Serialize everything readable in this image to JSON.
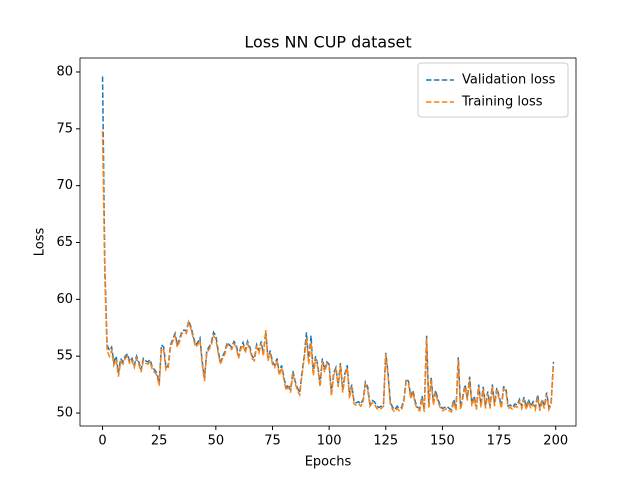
{
  "chart_data": {
    "type": "line",
    "title": "Loss NN CUP dataset",
    "xlabel": "Epochs",
    "ylabel": "Loss",
    "x": [
      0,
      1,
      2,
      3,
      4,
      5,
      6,
      7,
      8,
      9,
      10,
      11,
      12,
      13,
      14,
      15,
      16,
      17,
      18,
      19,
      20,
      21,
      22,
      23,
      24,
      25,
      26,
      27,
      28,
      29,
      30,
      31,
      32,
      33,
      34,
      35,
      36,
      37,
      38,
      39,
      40,
      41,
      42,
      43,
      44,
      45,
      46,
      47,
      48,
      49,
      50,
      51,
      52,
      53,
      54,
      55,
      56,
      57,
      58,
      59,
      60,
      61,
      62,
      63,
      64,
      65,
      66,
      67,
      68,
      69,
      70,
      71,
      72,
      73,
      74,
      75,
      76,
      77,
      78,
      79,
      80,
      81,
      82,
      83,
      84,
      85,
      86,
      87,
      88,
      89,
      90,
      91,
      92,
      93,
      94,
      95,
      96,
      97,
      98,
      99,
      100,
      101,
      102,
      103,
      104,
      105,
      106,
      107,
      108,
      109,
      110,
      111,
      112,
      113,
      114,
      115,
      116,
      117,
      118,
      119,
      120,
      121,
      122,
      123,
      124,
      125,
      126,
      127,
      128,
      129,
      130,
      131,
      132,
      133,
      134,
      135,
      136,
      137,
      138,
      139,
      140,
      141,
      142,
      143,
      144,
      145,
      146,
      147,
      148,
      149,
      150,
      151,
      152,
      153,
      154,
      155,
      156,
      157,
      158,
      159,
      160,
      161,
      162,
      163,
      164,
      165,
      166,
      167,
      168,
      169,
      170,
      171,
      172,
      173,
      174,
      175,
      176,
      177,
      178,
      179,
      180,
      181,
      182,
      183,
      184,
      185,
      186,
      187,
      188,
      189,
      190,
      191,
      192,
      193,
      194,
      195,
      196,
      197,
      198,
      199
    ],
    "series": [
      {
        "name": "Validation loss",
        "color": "#1f77b4",
        "values": [
          79.6,
          63,
          56,
          55.5,
          55.8,
          54.5,
          55,
          53.5,
          54.8,
          54.5,
          55,
          55.2,
          54.5,
          54.8,
          54.2,
          55,
          54.5,
          53.8,
          54.8,
          54.6,
          54.5,
          54.7,
          54,
          53.8,
          53.5,
          52.6,
          56,
          55.8,
          54,
          54.2,
          56,
          56.5,
          57,
          56,
          56.5,
          57.2,
          57.3,
          57.2,
          58.1,
          57.6,
          56.8,
          56,
          56.2,
          56.6,
          54.5,
          53,
          55.5,
          55.8,
          56.2,
          57.1,
          56.8,
          55.5,
          54.5,
          55,
          55.4,
          56.2,
          56,
          55.8,
          56.3,
          56,
          55,
          55.8,
          56.2,
          55.5,
          56.3,
          55.8,
          55,
          54.8,
          56,
          55.5,
          56.3,
          55.2,
          57.2,
          54.8,
          55.5,
          54.5,
          54.2,
          54.8,
          53.5,
          54.2,
          53.2,
          52.2,
          52.5,
          52,
          53.7,
          52.8,
          52.2,
          51.8,
          53.5,
          55,
          57.1,
          54.5,
          56.8,
          53.5,
          55,
          54.2,
          52.5,
          54.8,
          53.8,
          54.5,
          54.3,
          51.7,
          53.5,
          54,
          52.5,
          54.4,
          52,
          53.5,
          54.2,
          51.5,
          52.5,
          51,
          50.9,
          51,
          50.8,
          51.2,
          52.7,
          52.3,
          50.8,
          51.1,
          51,
          50.6,
          50.5,
          50.6,
          50.8,
          55.3,
          53.5,
          51,
          50.5,
          50.3,
          50.6,
          50.4,
          50.5,
          51.2,
          53,
          52.8,
          51.5,
          52,
          51,
          50.5,
          50.4,
          51.5,
          50.3,
          56.8,
          50.6,
          53.2,
          50.9,
          52,
          51.2,
          50.7,
          50.4,
          50.5,
          50.6,
          50.4,
          50.3,
          51.2,
          50.4,
          54.9,
          50.5,
          51.5,
          52.5,
          51.3,
          53.2,
          50.8,
          51.5,
          50.5,
          52.5,
          50.7,
          52.3,
          50.6,
          51.9,
          50.6,
          52.5,
          50.8,
          52.2,
          51.5,
          50.6,
          52.3,
          52.2,
          50.6,
          50.7,
          50.5,
          50.8,
          50.7,
          51.2,
          50.6,
          51.4,
          50.5,
          51.2,
          50.6,
          51,
          50.5,
          51.6,
          50.4,
          51.2,
          50.6,
          51.8,
          50.5,
          51,
          54.5
        ]
      },
      {
        "name": "Training loss",
        "color": "#ff7f0e",
        "values": [
          74.8,
          62,
          55.5,
          55,
          55.5,
          54.2,
          54.7,
          53.2,
          54.5,
          54.3,
          54.8,
          55,
          54.3,
          54.6,
          54,
          54.8,
          54.3,
          53.6,
          54.6,
          54.4,
          54.3,
          54.5,
          53.8,
          53.6,
          53.3,
          52.4,
          55.7,
          55.5,
          53.8,
          54,
          55.8,
          56.3,
          56.8,
          55.8,
          56.3,
          57,
          57.1,
          57,
          58,
          57.4,
          56.6,
          55.8,
          56,
          56.4,
          54.3,
          52.8,
          55.3,
          55.6,
          56,
          56.8,
          56.5,
          55.3,
          54.3,
          54.8,
          55.2,
          56,
          55.8,
          55.6,
          56.1,
          55.8,
          54.8,
          55.6,
          56,
          55.3,
          56.1,
          55.6,
          54.8,
          54.6,
          55.8,
          55.3,
          56.1,
          55,
          57.3,
          54.6,
          55.3,
          54.3,
          54,
          54.6,
          53.3,
          54,
          53,
          52,
          52.3,
          51.8,
          53.5,
          52.6,
          52,
          51.6,
          53.3,
          54.8,
          56.6,
          54.3,
          56.2,
          53.3,
          54.8,
          54,
          52.3,
          54.6,
          53.6,
          54.3,
          54.1,
          51.5,
          53.3,
          53.8,
          52.3,
          54.2,
          51.8,
          53.3,
          54,
          51.3,
          52.3,
          50.8,
          50.7,
          50.8,
          50.6,
          51,
          52.5,
          52.1,
          50.6,
          50.9,
          50.8,
          50.4,
          50.3,
          50.4,
          50.6,
          55.2,
          53.3,
          50.8,
          50.3,
          50.1,
          50.4,
          50.2,
          50.3,
          51,
          52.8,
          52.6,
          51.3,
          51.8,
          50.8,
          50.3,
          50.2,
          51.3,
          50.1,
          56.6,
          50.4,
          53,
          50.7,
          51.8,
          51,
          50.5,
          50.2,
          50.3,
          50.4,
          50.2,
          50.1,
          51,
          50.2,
          54.7,
          50.3,
          51.3,
          52.3,
          51.1,
          53,
          50.6,
          51.3,
          50.3,
          52.3,
          50.5,
          52.1,
          50.4,
          51.7,
          50.4,
          52.3,
          50.6,
          52,
          51.3,
          50.4,
          52.1,
          52,
          50.4,
          50.5,
          50.3,
          50.6,
          50.5,
          51,
          50.4,
          51.2,
          50.3,
          51,
          50.4,
          50.8,
          50.3,
          51.4,
          50.2,
          51,
          50.4,
          51.6,
          50.3,
          50.8,
          54.3
        ]
      }
    ],
    "xlim": [
      -9.95,
      208.95
    ],
    "xticks": [
      0,
      25,
      50,
      75,
      100,
      125,
      150,
      175,
      200
    ],
    "ylim": [
      48.86,
      81.23
    ],
    "yticks": [
      50,
      55,
      60,
      65,
      70,
      75,
      80
    ],
    "grid": false,
    "legend": "upper right"
  }
}
